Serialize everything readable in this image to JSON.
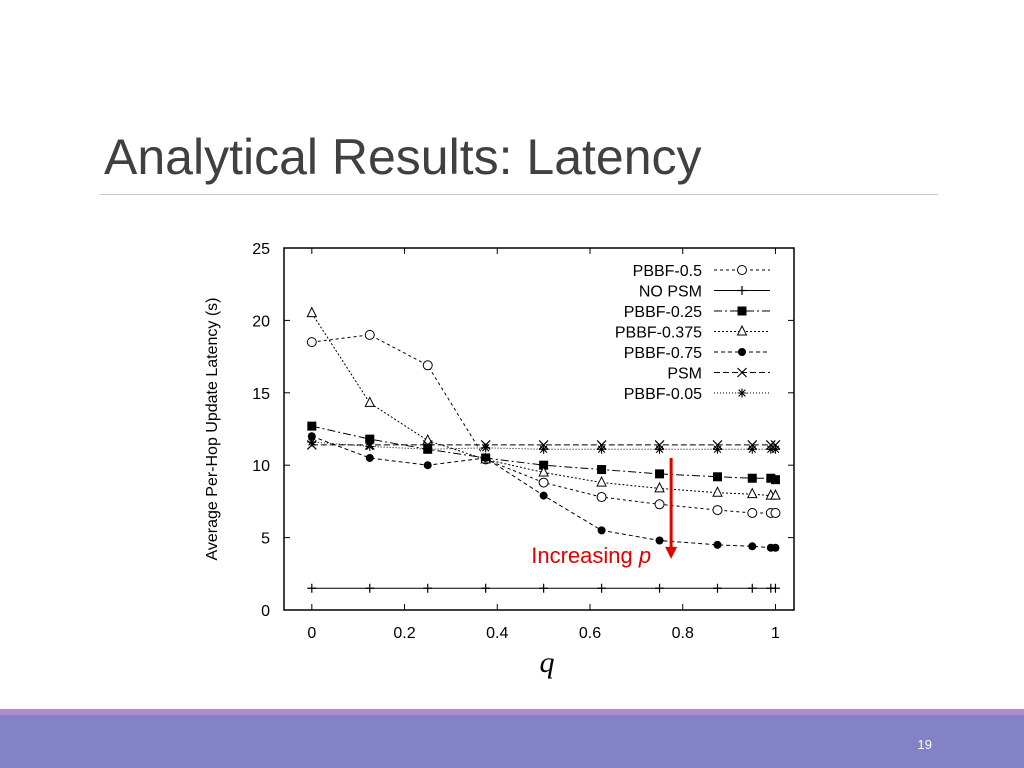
{
  "slide": {
    "title": "Analytical Results: Latency",
    "page_number": "19"
  },
  "colors": {
    "title": "#404040",
    "rule": "#c8c8c8",
    "footer_accent": "#b18bd0",
    "footer_bar": "#8282c4",
    "annotation": "#e00000"
  },
  "chart_data": {
    "type": "line",
    "title": "",
    "xlabel": "q",
    "ylabel": "Average Per-Hop Update Latency (s)",
    "xlim": [
      -0.06,
      1.04
    ],
    "ylim": [
      0,
      25
    ],
    "xticks": [
      0,
      0.2,
      0.4,
      0.6,
      0.8,
      1
    ],
    "xtick_labels": [
      "0",
      "0.2",
      "0.4",
      "0.6",
      "0.8",
      "1"
    ],
    "yticks": [
      0,
      5,
      10,
      15,
      20,
      25
    ],
    "ytick_labels": [
      "0",
      "5",
      "10",
      "15",
      "20",
      "25"
    ],
    "grid": false,
    "legend_position": "top-right",
    "series": [
      {
        "name": "PBBF-0.5",
        "marker": "circle-open",
        "dash": "3,3",
        "x": [
          0,
          0.125,
          0.25,
          0.375,
          0.5,
          0.625,
          0.75,
          0.875,
          0.95,
          0.99,
          1
        ],
        "y": [
          18.5,
          19.0,
          16.9,
          10.4,
          8.8,
          7.8,
          7.3,
          6.9,
          6.7,
          6.7,
          6.7
        ]
      },
      {
        "name": "NO PSM",
        "marker": "plus",
        "dash": "",
        "x": [
          0,
          0.125,
          0.25,
          0.375,
          0.5,
          0.625,
          0.75,
          0.875,
          0.95,
          0.99,
          1
        ],
        "y": [
          1.5,
          1.5,
          1.5,
          1.5,
          1.5,
          1.5,
          1.5,
          1.5,
          1.5,
          1.5,
          1.5
        ]
      },
      {
        "name": "PBBF-0.25",
        "marker": "square-filled",
        "dash": "8,3,2,3",
        "x": [
          0,
          0.125,
          0.25,
          0.375,
          0.5,
          0.625,
          0.75,
          0.875,
          0.95,
          0.99,
          1
        ],
        "y": [
          12.7,
          11.8,
          11.1,
          10.5,
          10.0,
          9.7,
          9.4,
          9.2,
          9.1,
          9.1,
          9.0
        ]
      },
      {
        "name": "PBBF-0.375",
        "marker": "triangle-open",
        "dash": "2,2",
        "x": [
          0,
          0.125,
          0.25,
          0.375,
          0.5,
          0.625,
          0.75,
          0.875,
          0.95,
          0.99,
          1
        ],
        "y": [
          20.5,
          14.3,
          11.7,
          10.4,
          9.5,
          8.8,
          8.4,
          8.1,
          8.0,
          7.9,
          7.9
        ]
      },
      {
        "name": "PBBF-0.75",
        "marker": "circle-filled",
        "dash": "4,3",
        "x": [
          0,
          0.125,
          0.25,
          0.375,
          0.5,
          0.625,
          0.75,
          0.875,
          0.95,
          0.99,
          1
        ],
        "y": [
          12.0,
          10.5,
          10.0,
          10.5,
          7.9,
          5.5,
          4.8,
          4.5,
          4.4,
          4.3,
          4.3
        ]
      },
      {
        "name": "PSM",
        "marker": "cross",
        "dash": "6,3",
        "x": [
          0,
          0.125,
          0.25,
          0.375,
          0.5,
          0.625,
          0.75,
          0.875,
          0.95,
          0.99,
          1
        ],
        "y": [
          11.4,
          11.4,
          11.4,
          11.4,
          11.4,
          11.4,
          11.4,
          11.4,
          11.4,
          11.4,
          11.4
        ]
      },
      {
        "name": "PBBF-0.05",
        "marker": "star",
        "dash": "1,2",
        "x": [
          0,
          0.125,
          0.25,
          0.375,
          0.5,
          0.625,
          0.75,
          0.875,
          0.95,
          0.99,
          1
        ],
        "y": [
          11.6,
          11.3,
          11.1,
          11.2,
          11.1,
          11.1,
          11.1,
          11.1,
          11.1,
          11.1,
          11.1
        ]
      }
    ],
    "annotation": {
      "text": "Increasing ",
      "italic_suffix": "p",
      "arrow_x": 0.775,
      "arrow_y_from": 10.5,
      "arrow_y_to": 3.6
    }
  }
}
